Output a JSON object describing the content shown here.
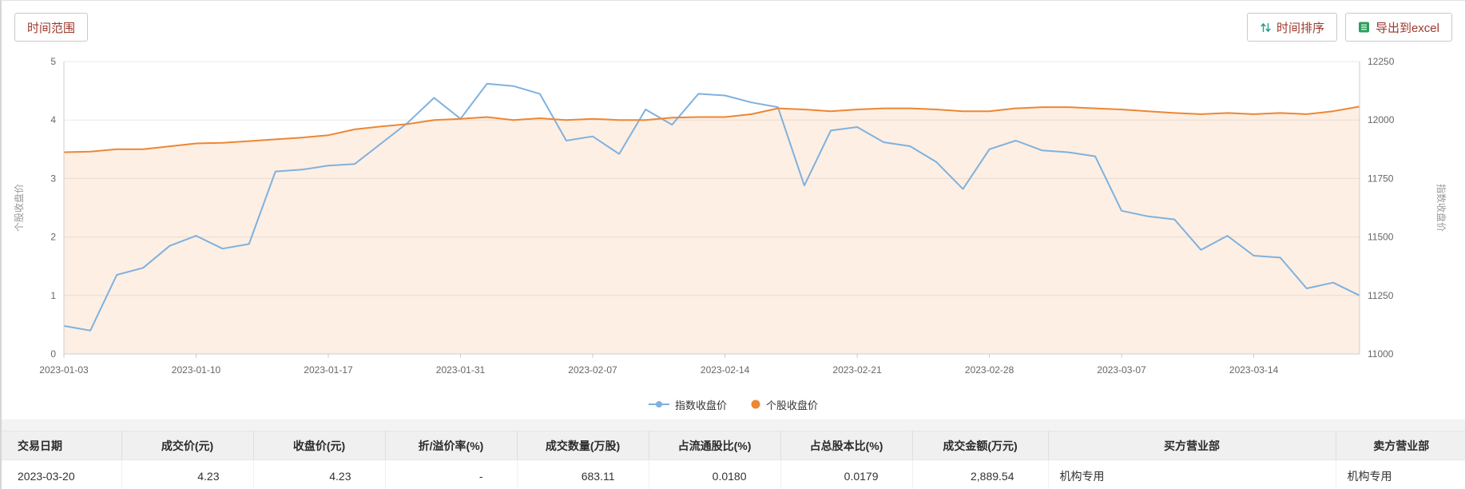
{
  "toolbar": {
    "time_range": "时间范围",
    "sort": "时间排序",
    "export_excel": "导出到excel"
  },
  "colors": {
    "button_text": "#9c382d",
    "index_line": "#7fb1de",
    "stock_line": "#ee8632",
    "stock_area": "rgba(238,134,50,0.13)",
    "sort_icon": "#1f9e8e",
    "excel_icon": "#2e9e5b",
    "grid_line": "#e9e9e9",
    "axis_line": "#cccccc",
    "axis_text": "#666666",
    "axis_title": "#999999"
  },
  "chart_data": {
    "type": "line",
    "n_points": 50,
    "x_tick_labels": [
      "2023-01-03",
      "2023-01-10",
      "2023-01-17",
      "2023-01-31",
      "2023-02-07",
      "2023-02-14",
      "2023-02-21",
      "2023-02-28",
      "2023-03-07",
      "2023-03-14"
    ],
    "x_tick_indices": [
      0,
      5,
      10,
      15,
      20,
      25,
      30,
      35,
      40,
      45
    ],
    "left_axis": {
      "name": "个股收盘价",
      "min": 0,
      "max": 5,
      "ticks": [
        0,
        1,
        2,
        3,
        4,
        5
      ]
    },
    "right_axis": {
      "name": "指数收盘价",
      "min": 11000,
      "max": 12250,
      "ticks": [
        11000,
        11250,
        11500,
        11750,
        12000,
        12250
      ]
    },
    "legend_position": "bottom-center",
    "grid": true,
    "series": [
      {
        "name": "指数收盘价",
        "axis": "right",
        "color": "#7fb1de",
        "area": false,
        "values": [
          11120,
          11100,
          11338,
          11368,
          11462,
          11505,
          11450,
          11470,
          11780,
          11788,
          11805,
          11812,
          11900,
          11988,
          12095,
          12005,
          12155,
          12145,
          12112,
          11912,
          11930,
          11855,
          12045,
          11980,
          12112,
          12105,
          12075,
          12055,
          11720,
          11955,
          11970,
          11905,
          11888,
          11820,
          11705,
          11875,
          11912,
          11870,
          11862,
          11845,
          11612,
          11588,
          11575,
          11445,
          11505,
          11420,
          11412,
          11280,
          11305,
          11250
        ]
      },
      {
        "name": "个股收盘价",
        "axis": "left",
        "color": "#ee8632",
        "area": true,
        "area_color": "rgba(238,134,50,0.13)",
        "values": [
          3.45,
          3.46,
          3.5,
          3.5,
          3.55,
          3.6,
          3.61,
          3.64,
          3.67,
          3.7,
          3.74,
          3.84,
          3.89,
          3.93,
          4.0,
          4.02,
          4.05,
          4.0,
          4.03,
          4.0,
          4.02,
          4.0,
          4.0,
          4.04,
          4.05,
          4.05,
          4.1,
          4.2,
          4.18,
          4.15,
          4.18,
          4.2,
          4.2,
          4.18,
          4.15,
          4.15,
          4.2,
          4.22,
          4.22,
          4.2,
          4.18,
          4.15,
          4.12,
          4.1,
          4.12,
          4.1,
          4.12,
          4.1,
          4.15,
          4.23
        ]
      }
    ]
  },
  "table": {
    "headers": [
      "交易日期",
      "成交价(元)",
      "收盘价(元)",
      "折/溢价率(%)",
      "成交数量(万股)",
      "占流通股比(%)",
      "占总股本比(%)",
      "成交金额(万元)",
      "买方营业部",
      "卖方营业部"
    ],
    "rows": [
      [
        "2023-03-20",
        "4.23",
        "4.23",
        "-",
        "683.11",
        "0.0180",
        "0.0179",
        "2,889.54",
        "机构专用",
        "机构专用"
      ]
    ]
  }
}
